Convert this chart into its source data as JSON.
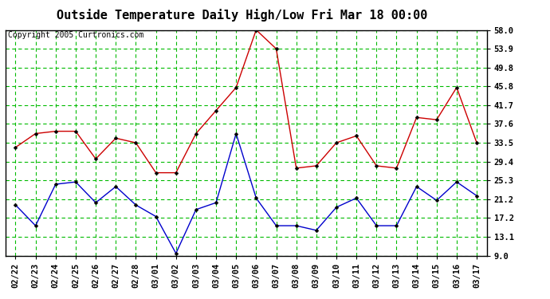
{
  "title": "Outside Temperature Daily High/Low Fri Mar 18 00:00",
  "copyright": "Copyright 2005 Curtronics.com",
  "x_labels": [
    "02/22",
    "02/23",
    "02/24",
    "02/25",
    "02/26",
    "02/27",
    "02/28",
    "03/01",
    "03/02",
    "03/03",
    "03/04",
    "03/05",
    "03/06",
    "03/07",
    "03/08",
    "03/09",
    "03/10",
    "03/11",
    "03/12",
    "03/13",
    "03/14",
    "03/15",
    "03/16",
    "03/17"
  ],
  "high_values": [
    32.5,
    35.5,
    36.0,
    36.0,
    30.0,
    34.5,
    33.5,
    27.0,
    27.0,
    35.5,
    40.5,
    45.5,
    58.0,
    53.9,
    28.0,
    28.5,
    33.5,
    35.0,
    28.5,
    28.0,
    39.0,
    38.5,
    45.5,
    33.5
  ],
  "low_values": [
    20.0,
    15.5,
    24.5,
    25.0,
    20.5,
    24.0,
    20.0,
    17.5,
    9.5,
    19.0,
    20.5,
    35.5,
    21.5,
    15.5,
    15.5,
    14.5,
    19.5,
    21.5,
    15.5,
    15.5,
    24.0,
    21.0,
    25.0,
    22.0
  ],
  "high_color": "#cc0000",
  "low_color": "#0000cc",
  "bg_color": "#ffffff",
  "grid_color": "#00bb00",
  "yticks": [
    9.0,
    13.1,
    17.2,
    21.2,
    25.3,
    29.4,
    33.5,
    37.6,
    41.7,
    45.8,
    49.8,
    53.9,
    58.0
  ],
  "ymin": 9.0,
  "ymax": 58.0,
  "title_fontsize": 11,
  "copyright_fontsize": 7,
  "tick_fontsize": 7.5
}
